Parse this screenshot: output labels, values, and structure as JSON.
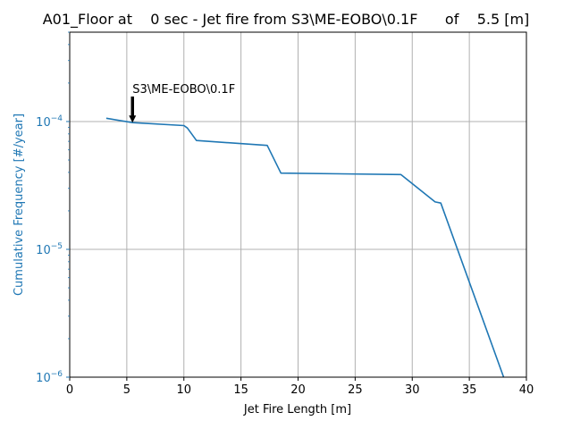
{
  "chart_data": {
    "type": "line",
    "title": "A01_Floor at    0 sec - Jet fire from S3\\ME-EOBO\\0.1F      of    5.5 [m]",
    "xlabel": "Jet Fire Length [m]",
    "ylabel": "Cumulative Frequency [#/year]",
    "xlim": [
      0,
      40
    ],
    "ylim": [
      1e-06,
      0.0005
    ],
    "yscale": "log",
    "grid": true,
    "x_ticks": [
      {
        "value": 0,
        "label": "0"
      },
      {
        "value": 5,
        "label": "5"
      },
      {
        "value": 10,
        "label": "10"
      },
      {
        "value": 15,
        "label": "15"
      },
      {
        "value": 20,
        "label": "20"
      },
      {
        "value": 25,
        "label": "25"
      },
      {
        "value": 30,
        "label": "30"
      },
      {
        "value": 35,
        "label": "35"
      },
      {
        "value": 40,
        "label": "40"
      }
    ],
    "y_ticks": [
      {
        "value": 1e-06,
        "base": "10",
        "exp": "−6"
      },
      {
        "value": 1e-05,
        "base": "10",
        "exp": "−5"
      },
      {
        "value": 0.0001,
        "base": "10",
        "exp": "−4"
      }
    ],
    "series": [
      {
        "color": "#1f77b4",
        "x": [
          3.2,
          5.5,
          10.0,
          10.3,
          11.1,
          17.3,
          18.5,
          29.0,
          32.0,
          32.5,
          38.0
        ],
        "y": [
          0.000106,
          9.8e-05,
          9.3e-05,
          8.9e-05,
          7.1e-05,
          6.5e-05,
          3.95e-05,
          3.85e-05,
          2.35e-05,
          2.3e-05,
          1e-06
        ]
      }
    ],
    "annotations": [
      {
        "text": "S3\\ME-EOBO\\0.1F",
        "x": 5.5,
        "y": 9.8e-05,
        "arrow": true
      }
    ],
    "colors": {
      "line": "#1f77b4",
      "ylabel": "#1f77b4",
      "grid": "#b0b0b0"
    }
  }
}
